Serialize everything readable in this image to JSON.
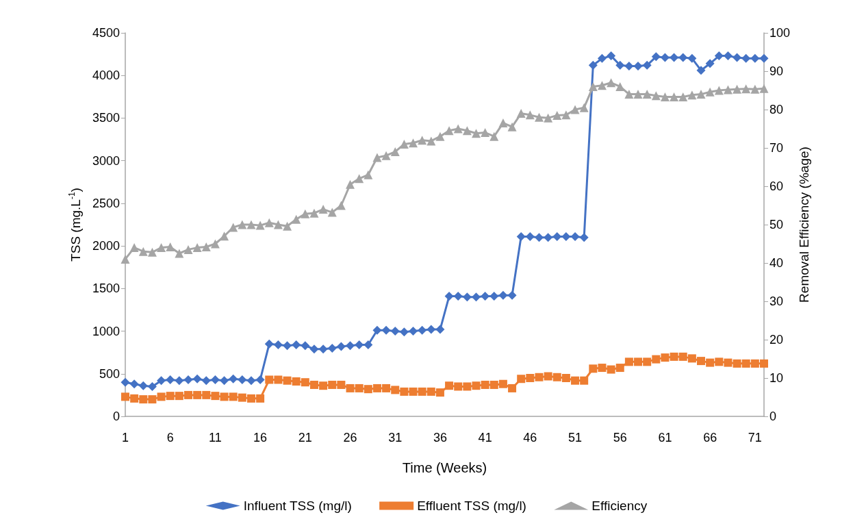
{
  "chart_data": {
    "type": "line",
    "xlabel": "Time (Weeks)",
    "ylabel": "TSS (mg.L$^{-1}$)",
    "y2label": "Removal Efficiency (%age)",
    "x": [
      1,
      2,
      3,
      4,
      5,
      6,
      7,
      8,
      9,
      10,
      11,
      12,
      13,
      14,
      15,
      16,
      17,
      18,
      19,
      20,
      21,
      22,
      23,
      24,
      25,
      26,
      27,
      28,
      29,
      30,
      31,
      32,
      33,
      34,
      35,
      36,
      37,
      38,
      39,
      40,
      41,
      42,
      43,
      44,
      45,
      46,
      47,
      48,
      49,
      50,
      51,
      52,
      53,
      54,
      55,
      56,
      57,
      58,
      59,
      60,
      61,
      62,
      63,
      64,
      65,
      66,
      67,
      68,
      69,
      70,
      71,
      72
    ],
    "xlim": [
      1,
      72
    ],
    "xticks": [
      1,
      6,
      11,
      16,
      21,
      26,
      31,
      36,
      41,
      46,
      51,
      56,
      61,
      66,
      71
    ],
    "series": [
      {
        "name": "Influent TSS (mg/l)",
        "color": "#4472c4",
        "marker": "diamond",
        "values": [
          400,
          380,
          360,
          350,
          420,
          430,
          420,
          430,
          440,
          420,
          430,
          420,
          440,
          430,
          420,
          430,
          850,
          840,
          830,
          840,
          830,
          790,
          790,
          800,
          820,
          830,
          840,
          840,
          1010,
          1010,
          1000,
          990,
          1000,
          1010,
          1020,
          1020,
          1410,
          1410,
          1400,
          1400,
          1410,
          1410,
          1420,
          1420,
          2110,
          2110,
          2100,
          2100,
          2110,
          2110,
          2110,
          2100,
          4120,
          4200,
          4230,
          4120,
          4110,
          4110,
          4120,
          4220,
          4210,
          4210,
          4210,
          4200,
          4060,
          4140,
          4230,
          4230,
          4210,
          4200,
          4200,
          4200
        ]
      },
      {
        "name": "Effluent TSS (mg/l)",
        "color": "#ed7d31",
        "marker": "square",
        "values": [
          230,
          210,
          200,
          200,
          230,
          240,
          240,
          250,
          250,
          250,
          240,
          230,
          230,
          220,
          210,
          210,
          430,
          430,
          420,
          410,
          400,
          370,
          360,
          370,
          370,
          330,
          330,
          320,
          330,
          330,
          310,
          290,
          290,
          290,
          290,
          280,
          360,
          350,
          350,
          360,
          370,
          370,
          380,
          330,
          440,
          450,
          460,
          470,
          460,
          450,
          420,
          420,
          560,
          570,
          550,
          570,
          640,
          640,
          640,
          670,
          690,
          700,
          700,
          680,
          650,
          630,
          640,
          630,
          620,
          620,
          620,
          620
        ]
      },
      {
        "name": "Efficiency",
        "color": "#a5a5a5",
        "marker": "triangle",
        "axis": "y2",
        "values": [
          41,
          44,
          43,
          42.8,
          44,
          44.2,
          42.5,
          43.5,
          44,
          44.2,
          45,
          47,
          49.3,
          50,
          50,
          49.8,
          50.5,
          50,
          49.6,
          51.4,
          52.8,
          53,
          54,
          53.2,
          55,
          60.5,
          62,
          63,
          67.5,
          68,
          69,
          71,
          71.3,
          72,
          71.8,
          73,
          74.5,
          75,
          74.5,
          73.8,
          74,
          73,
          76.5,
          75.5,
          79,
          78.6,
          78,
          77.8,
          78.5,
          78.6,
          80,
          80.5,
          86,
          86.3,
          87,
          86,
          84,
          84,
          84,
          83.6,
          83.3,
          83.3,
          83.3,
          83.8,
          84,
          84.6,
          85,
          85.2,
          85.3,
          85.4,
          85.3,
          85.5
        ]
      }
    ],
    "ylim": [
      0,
      4500
    ],
    "yticks": [
      0,
      500,
      1000,
      1500,
      2000,
      2500,
      3000,
      3500,
      4000,
      4500
    ],
    "y2lim": [
      0,
      100
    ],
    "y2ticks": [
      0,
      10,
      20,
      30,
      40,
      50,
      60,
      70,
      80,
      90,
      100
    ],
    "grid": false,
    "legend": "bottom",
    "line_style": "solid"
  }
}
